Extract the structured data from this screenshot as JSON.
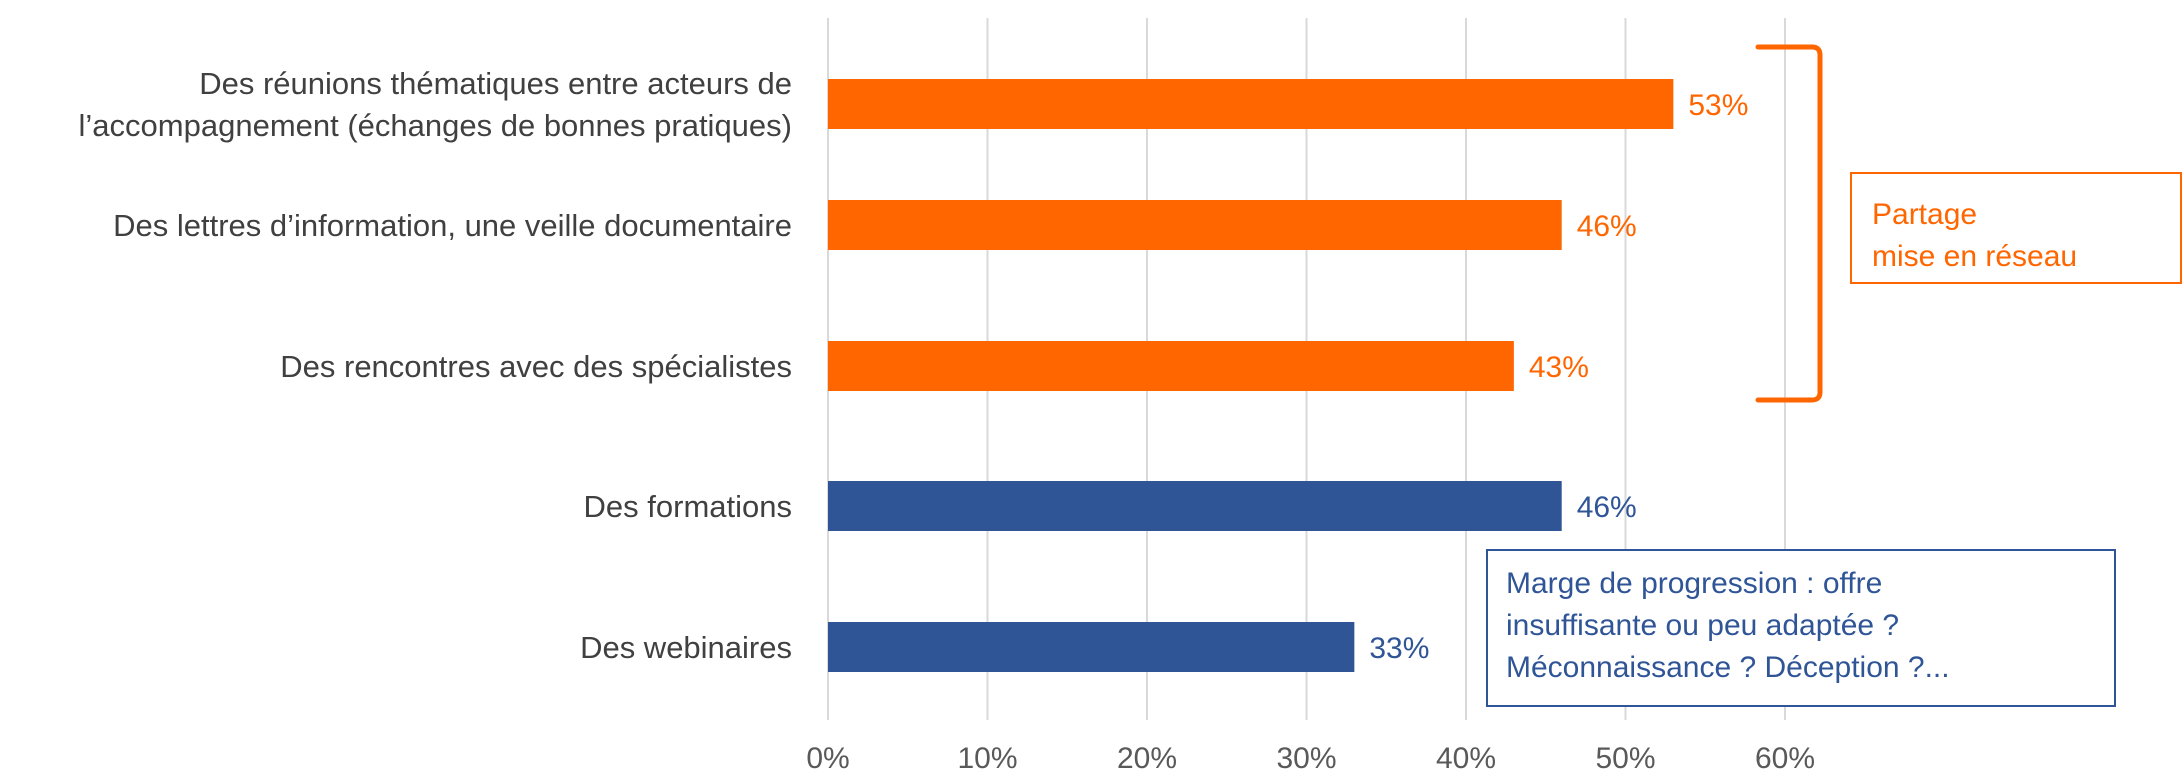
{
  "chart_data": {
    "type": "bar",
    "orientation": "horizontal",
    "categories": [
      [
        "Des réunions thématiques entre acteurs de",
        "l’accompagnement (échanges de bonnes pratiques)"
      ],
      [
        "Des lettres d’information, une veille documentaire"
      ],
      [
        "Des rencontres avec des spécialistes"
      ],
      [
        "Des formations"
      ],
      [
        "Des webinaires"
      ]
    ],
    "values": [
      53,
      46,
      43,
      46,
      33
    ],
    "data_labels": [
      "53%",
      "46%",
      "43%",
      "46%",
      "33%"
    ],
    "bar_colors": [
      "#ff6600",
      "#ff6600",
      "#ff6600",
      "#2f5597",
      "#2f5597"
    ],
    "xlim": [
      0,
      60
    ],
    "x_ticks": [
      "0%",
      "10%",
      "20%",
      "30%",
      "40%",
      "50%",
      "60%"
    ],
    "grid": "vertical",
    "title": "",
    "xlabel": "",
    "ylabel": ""
  },
  "annotations": {
    "partage": {
      "lines": [
        "Partage",
        "mise en réseau"
      ],
      "color": "#ff6600"
    },
    "marge": {
      "lines": [
        "Marge de progression : offre",
        "insuffisante ou peu adaptée ?",
        "Méconnaissance ? Déception ?..."
      ],
      "color": "#2f5597"
    }
  }
}
